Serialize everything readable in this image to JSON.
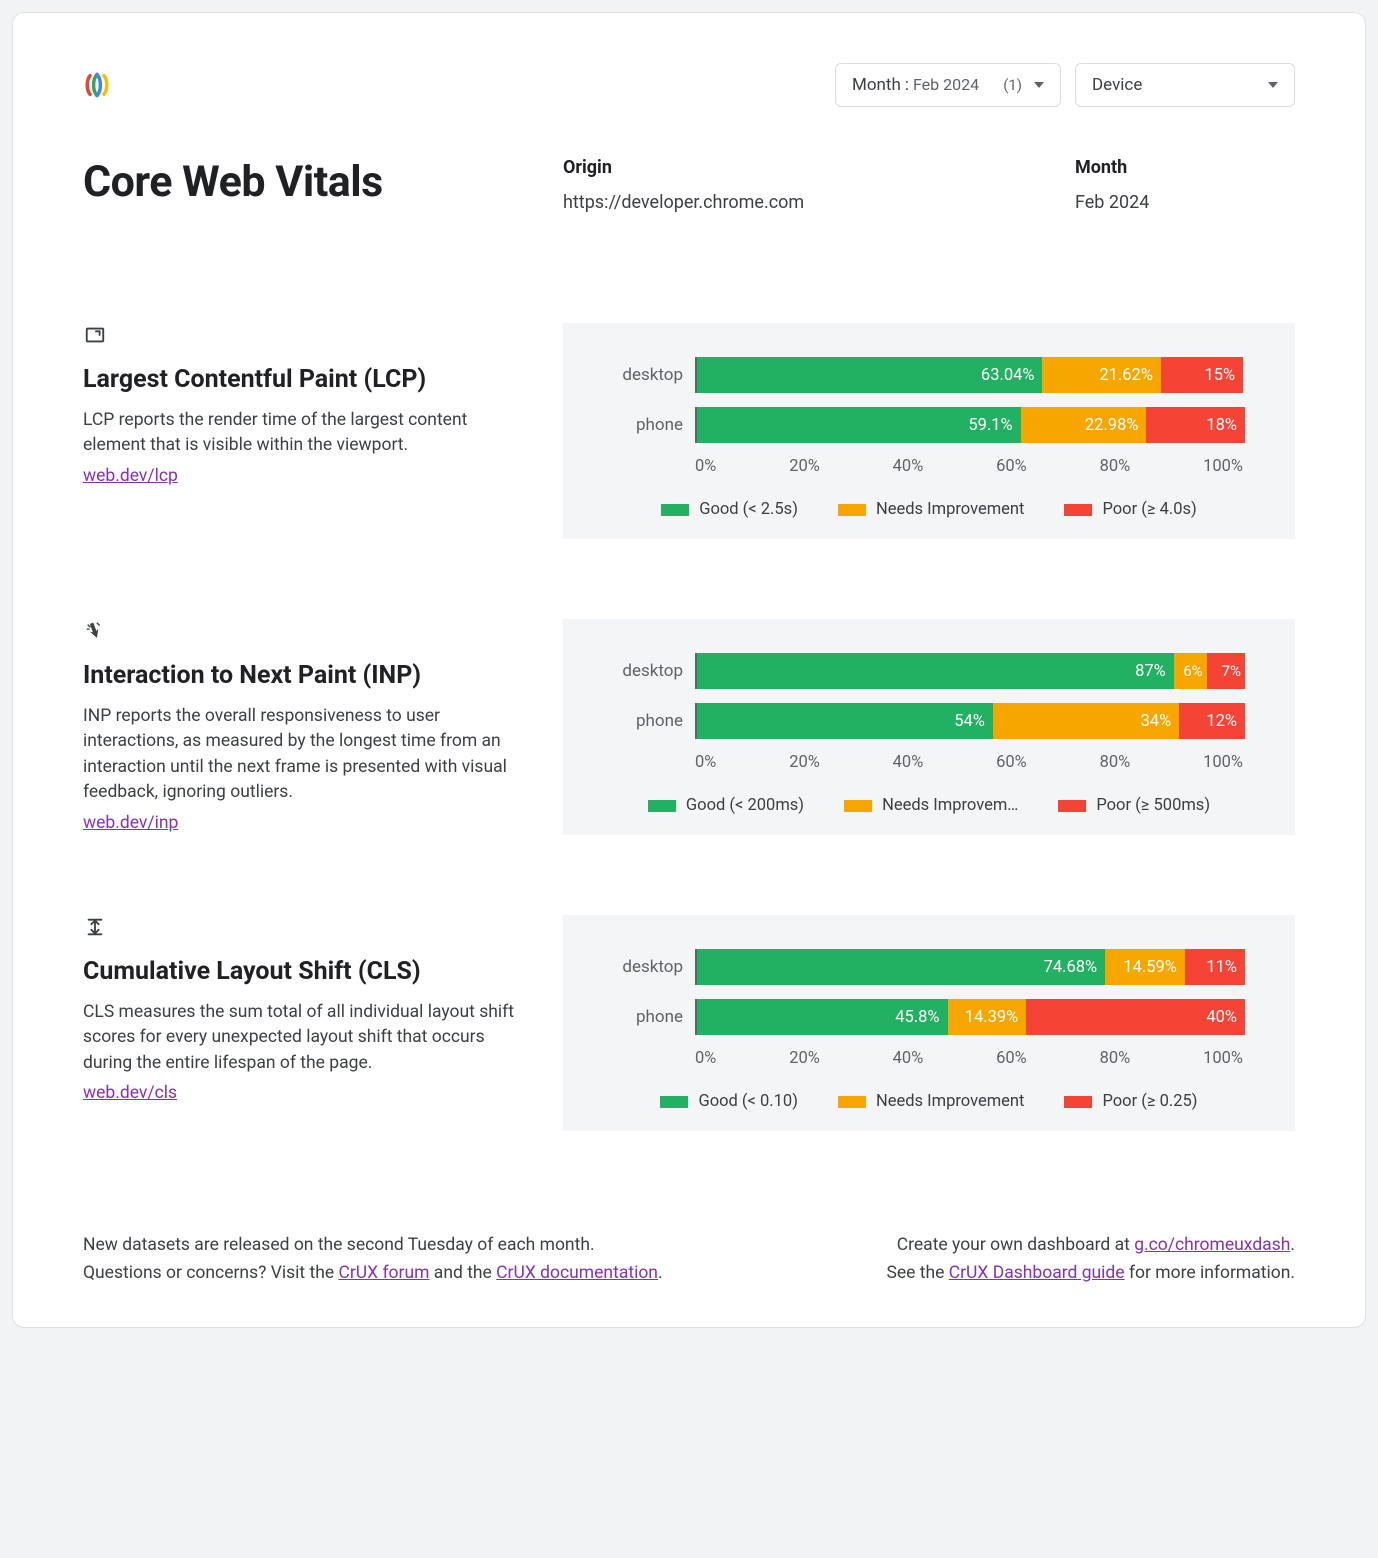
{
  "colors": {
    "good": "#22b062",
    "ni": "#f7a600",
    "poor": "#f54336",
    "panel_bg": "#f3f5f7",
    "text_muted": "#5f6368",
    "link": "#8631b5"
  },
  "filters": {
    "month": {
      "label": "Month",
      "value": "Feb 2024",
      "count": "(1)"
    },
    "device": {
      "label": "Device"
    }
  },
  "header": {
    "title": "Core Web Vitals",
    "origin_label": "Origin",
    "origin_value": "https://developer.chrome.com",
    "month_label": "Month",
    "month_value": "Feb 2024"
  },
  "axis_ticks": [
    "0%",
    "20%",
    "40%",
    "60%",
    "80%",
    "100%"
  ],
  "metrics": [
    {
      "key": "lcp",
      "icon": "lcp-icon",
      "title": "Largest Contentful Paint (LCP)",
      "desc": "LCP reports the render time of the largest content element that is visible within the viewport.",
      "link": "web.dev/lcp",
      "legend": {
        "good": "Good (< 2.5s)",
        "ni": "Needs Improvement",
        "poor": "Poor (≥ 4.0s)"
      },
      "rows": [
        {
          "cat": "desktop",
          "good": 63.04,
          "ni": 21.62,
          "poor": 15,
          "good_label": "63.04%",
          "ni_label": "21.62%",
          "poor_label": "15%"
        },
        {
          "cat": "phone",
          "good": 59.1,
          "ni": 22.98,
          "poor": 18,
          "good_label": "59.1%",
          "ni_label": "22.98%",
          "poor_label": "18%"
        }
      ]
    },
    {
      "key": "inp",
      "icon": "inp-icon",
      "title": "Interaction to Next Paint (INP)",
      "desc": "INP reports the overall responsiveness to user interactions, as measured by the longest time from an interaction until the next frame is presented with visual feedback, ignoring outliers.",
      "link": "web.dev/inp",
      "legend": {
        "good": "Good (< 200ms)",
        "ni": "Needs Improvem…",
        "poor": "Poor (≥ 500ms)"
      },
      "rows": [
        {
          "cat": "desktop",
          "good": 87,
          "ni": 6,
          "poor": 7,
          "good_label": "87%",
          "ni_label": "6%",
          "poor_label": "7%"
        },
        {
          "cat": "phone",
          "good": 54,
          "ni": 34,
          "poor": 12,
          "good_label": "54%",
          "ni_label": "34%",
          "poor_label": "12%"
        }
      ]
    },
    {
      "key": "cls",
      "icon": "cls-icon",
      "title": "Cumulative Layout Shift (CLS)",
      "desc": "CLS measures the sum total of all individual layout shift scores for every unexpected layout shift that occurs during the entire lifespan of the page.",
      "link": "web.dev/cls",
      "legend": {
        "good": "Good (< 0.10)",
        "ni": "Needs Improvement",
        "poor": "Poor (≥ 0.25)"
      },
      "rows": [
        {
          "cat": "desktop",
          "good": 74.68,
          "ni": 14.59,
          "poor": 11,
          "good_label": "74.68%",
          "ni_label": "14.59%",
          "poor_label": "11%"
        },
        {
          "cat": "phone",
          "good": 45.8,
          "ni": 14.39,
          "poor": 40,
          "good_label": "45.8%",
          "ni_label": "14.39%",
          "poor_label": "40%"
        }
      ]
    }
  ],
  "footer": {
    "left_line1": "New datasets are released on the second Tuesday of each month.",
    "left_line2_pre": "Questions or concerns? Visit the ",
    "left_link1": "CrUX forum",
    "left_mid": " and the ",
    "left_link2": "CrUX documentation",
    "left_post": ".",
    "right_line1_pre": "Create your own dashboard at ",
    "right_link1": "g.co/chromeuxdash",
    "right_line1_post": ".",
    "right_line2_pre": "See the ",
    "right_link2": "CrUX Dashboard guide",
    "right_line2_post": " for more information."
  }
}
